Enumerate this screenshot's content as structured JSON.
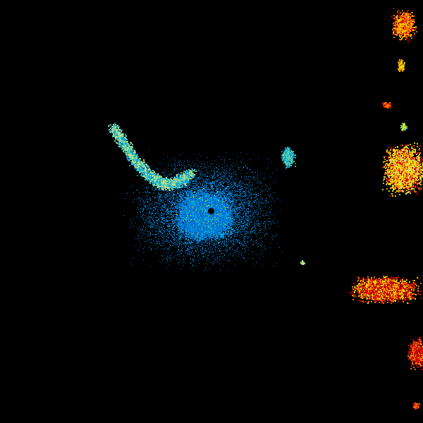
{
  "image": {
    "kind": "weather-radar-reflectivity",
    "background_color": "#000000",
    "palette": {
      "light_blue": "#00a0e0",
      "blue": "#0070d0",
      "cyan_green": "#60d0a0",
      "pale_yellow": "#d0e080",
      "yellow": "#f0e000",
      "orange": "#f08000",
      "red": "#e00000",
      "dark_red": "#b00000"
    },
    "features": [
      {
        "name": "central-clutter",
        "colors": [
          "blue",
          "light_blue"
        ]
      },
      {
        "name": "northwest-arc-band",
        "colors": [
          "cyan_green",
          "pale_yellow"
        ]
      },
      {
        "name": "east-storm-cells",
        "colors": [
          "yellow",
          "orange",
          "red",
          "dark_red"
        ]
      }
    ]
  }
}
